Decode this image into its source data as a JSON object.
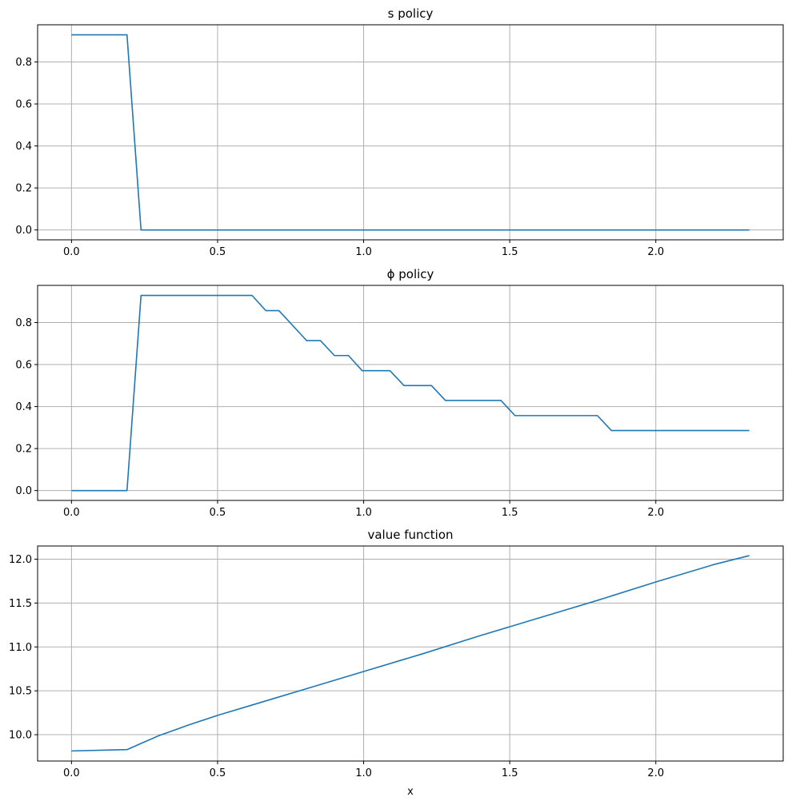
{
  "colors": {
    "line": "#1f77b4",
    "grid": "#b0b0b0",
    "axes": "#000000",
    "background": "#ffffff"
  },
  "chart_data": [
    {
      "type": "line",
      "title": "s policy",
      "xlabel": "",
      "ylabel": "",
      "grid": true,
      "xlim": [
        -0.116,
        2.436
      ],
      "ylim": [
        -0.047,
        0.977
      ],
      "xticks": [
        0.0,
        0.5,
        1.0,
        1.5,
        2.0
      ],
      "xtick_labels": [
        "0.0",
        "0.5",
        "1.0",
        "1.5",
        "2.0"
      ],
      "yticks": [
        0.0,
        0.2,
        0.4,
        0.6,
        0.8
      ],
      "ytick_labels": [
        "0.0",
        "0.2",
        "0.4",
        "0.6",
        "0.8"
      ],
      "series": [
        {
          "x": [
            0.0,
            0.19,
            0.238,
            2.32
          ],
          "y": [
            0.929,
            0.929,
            0.0,
            0.0
          ]
        }
      ]
    },
    {
      "type": "line",
      "title": "ϕ policy",
      "xlabel": "",
      "ylabel": "",
      "grid": true,
      "xlim": [
        -0.116,
        2.436
      ],
      "ylim": [
        -0.047,
        0.977
      ],
      "xticks": [
        0.0,
        0.5,
        1.0,
        1.5,
        2.0
      ],
      "xtick_labels": [
        "0.0",
        "0.5",
        "1.0",
        "1.5",
        "2.0"
      ],
      "yticks": [
        0.0,
        0.2,
        0.4,
        0.6,
        0.8
      ],
      "ytick_labels": [
        "0.0",
        "0.2",
        "0.4",
        "0.6",
        "0.8"
      ],
      "series": [
        {
          "x": [
            0.0,
            0.19,
            0.238,
            0.618,
            0.665,
            0.71,
            0.805,
            0.852,
            0.9,
            0.948,
            0.995,
            1.09,
            1.138,
            1.232,
            1.28,
            1.47,
            1.518,
            1.8,
            1.848,
            2.32
          ],
          "y": [
            0.0,
            0.0,
            0.929,
            0.929,
            0.857,
            0.857,
            0.714,
            0.714,
            0.643,
            0.643,
            0.571,
            0.571,
            0.5,
            0.5,
            0.429,
            0.429,
            0.357,
            0.357,
            0.286,
            0.286
          ]
        }
      ]
    },
    {
      "type": "line",
      "title": "value function",
      "xlabel": "x",
      "ylabel": "",
      "grid": true,
      "xlim": [
        -0.116,
        2.436
      ],
      "ylim": [
        9.7,
        12.15
      ],
      "xticks": [
        0.0,
        0.5,
        1.0,
        1.5,
        2.0
      ],
      "xtick_labels": [
        "0.0",
        "0.5",
        "1.0",
        "1.5",
        "2.0"
      ],
      "yticks": [
        10.0,
        10.5,
        11.0,
        11.5,
        12.0
      ],
      "ytick_labels": [
        "10.0",
        "10.5",
        "11.0",
        "11.5",
        "12.0"
      ],
      "series": [
        {
          "x": [
            0.0,
            0.19,
            0.238,
            0.3,
            0.35,
            0.4,
            0.5,
            0.6,
            0.7,
            0.8,
            0.9,
            1.0,
            1.2,
            1.4,
            1.6,
            1.8,
            2.0,
            2.2,
            2.32
          ],
          "y": [
            9.815,
            9.83,
            9.9,
            9.99,
            10.05,
            10.11,
            10.22,
            10.32,
            10.42,
            10.52,
            10.62,
            10.72,
            10.92,
            11.13,
            11.33,
            11.53,
            11.74,
            11.94,
            12.04
          ]
        }
      ]
    }
  ]
}
